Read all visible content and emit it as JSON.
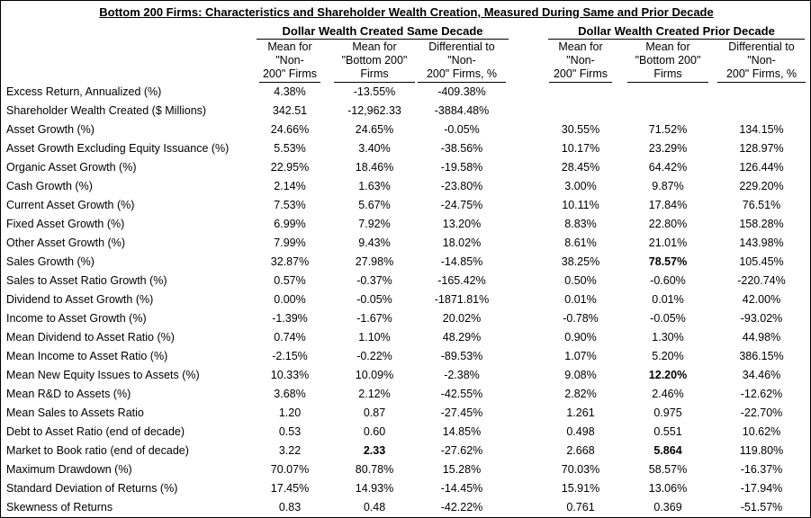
{
  "title": "Bottom 200 Firms: Characteristics and Shareholder Wealth Creation, Measured During Same and Prior Decade",
  "groups": {
    "same": "Dollar Wealth Created Same Decade",
    "prior": "Dollar Wealth Created Prior Decade"
  },
  "columns": {
    "c1": [
      "Mean for",
      "\"Non-",
      "200\" Firms"
    ],
    "c2": [
      "Mean for",
      "\"Bottom 200\"",
      "Firms"
    ],
    "c3": [
      "Differential to",
      "\"Non-",
      "200\" Firms, %"
    ],
    "c4": [
      "Mean for",
      "\"Non-",
      "200\" Firms"
    ],
    "c5": [
      "Mean for",
      "\"Bottom 200\"",
      "Firms"
    ],
    "c6": [
      "Differential to",
      "\"Non-",
      "200\" Firms, %"
    ]
  },
  "rows": [
    {
      "label": "Excess Return, Annualized (%)",
      "v": [
        "4.38%",
        "-13.55%",
        "-409.38%",
        "",
        "",
        ""
      ]
    },
    {
      "label": "Shareholder Wealth Created ($ Millions)",
      "v": [
        "342.51",
        "-12,962.33",
        "-3884.48%",
        "",
        "",
        ""
      ]
    },
    {
      "label": "Asset Growth (%)",
      "v": [
        "24.66%",
        "24.65%",
        "-0.05%",
        "30.55%",
        "71.52%",
        "134.15%"
      ]
    },
    {
      "label": "Asset Growth Excluding Equity Issuance (%)",
      "v": [
        "5.53%",
        "3.40%",
        "-38.56%",
        "10.17%",
        "23.29%",
        "128.97%"
      ]
    },
    {
      "label": "Organic Asset Growth (%)",
      "v": [
        "22.95%",
        "18.46%",
        "-19.58%",
        "28.45%",
        "64.42%",
        "126.44%"
      ]
    },
    {
      "label": "Cash Growth (%)",
      "v": [
        "2.14%",
        "1.63%",
        "-23.80%",
        "3.00%",
        "9.87%",
        "229.20%"
      ]
    },
    {
      "label": "Current Asset Growth (%)",
      "v": [
        "7.53%",
        "5.67%",
        "-24.75%",
        "10.11%",
        "17.84%",
        "76.51%"
      ]
    },
    {
      "label": "Fixed Asset Growth (%)",
      "v": [
        "6.99%",
        "7.92%",
        "13.20%",
        "8.83%",
        "22.80%",
        "158.28%"
      ]
    },
    {
      "label": "Other Asset Growth (%)",
      "v": [
        "7.99%",
        "9.43%",
        "18.02%",
        "8.61%",
        "21.01%",
        "143.98%"
      ]
    },
    {
      "label": "Sales Growth (%)",
      "v": [
        "32.87%",
        "27.98%",
        "-14.85%",
        "38.25%",
        "78.57%",
        "105.45%"
      ],
      "bold": [
        4
      ]
    },
    {
      "label": "Sales to Asset Ratio Growth (%)",
      "v": [
        "0.57%",
        "-0.37%",
        "-165.42%",
        "0.50%",
        "-0.60%",
        "-220.74%"
      ]
    },
    {
      "label": "Dividend to Asset Growth (%)",
      "v": [
        "0.00%",
        "-0.05%",
        "-1871.81%",
        "0.01%",
        "0.01%",
        "42.00%"
      ]
    },
    {
      "label": "Income to Asset Growth (%)",
      "v": [
        "-1.39%",
        "-1.67%",
        "20.02%",
        "-0.78%",
        "-0.05%",
        "-93.02%"
      ]
    },
    {
      "label": "Mean Dividend to Asset Ratio (%)",
      "v": [
        "0.74%",
        "1.10%",
        "48.29%",
        "0.90%",
        "1.30%",
        "44.98%"
      ]
    },
    {
      "label": "Mean Income to Asset Ratio (%)",
      "v": [
        "-2.15%",
        "-0.22%",
        "-89.53%",
        "1.07%",
        "5.20%",
        "386.15%"
      ]
    },
    {
      "label": "Mean New Equity Issues to Assets (%)",
      "v": [
        "10.33%",
        "10.09%",
        "-2.38%",
        "9.08%",
        "12.20%",
        "34.46%"
      ],
      "bold": [
        4
      ]
    },
    {
      "label": "Mean R&D to Assets (%)",
      "v": [
        "3.68%",
        "2.12%",
        "-42.55%",
        "2.82%",
        "2.46%",
        "-12.62%"
      ]
    },
    {
      "label": "Mean Sales to Assets Ratio",
      "v": [
        "1.20",
        "0.87",
        "-27.45%",
        "1.261",
        "0.975",
        "-22.70%"
      ]
    },
    {
      "label": "Debt to Asset Ratio (end of decade)",
      "v": [
        "0.53",
        "0.60",
        "14.85%",
        "0.498",
        "0.551",
        "10.62%"
      ]
    },
    {
      "label": "Market to Book ratio (end of decade)",
      "v": [
        "3.22",
        "2.33",
        "-27.62%",
        "2.668",
        "5.864",
        "119.80%"
      ],
      "bold": [
        1,
        4
      ]
    },
    {
      "label": "Maximum Drawdown (%)",
      "v": [
        "70.07%",
        "80.78%",
        "15.28%",
        "70.03%",
        "58.57%",
        "-16.37%"
      ]
    },
    {
      "label": "Standard Deviation of Returns (%)",
      "v": [
        "17.45%",
        "14.93%",
        "-14.45%",
        "15.91%",
        "13.06%",
        "-17.94%"
      ]
    },
    {
      "label": "Skewness of Returns",
      "v": [
        "0.83",
        "0.48",
        "-42.22%",
        "0.761",
        "0.369",
        "-51.57%"
      ]
    }
  ]
}
